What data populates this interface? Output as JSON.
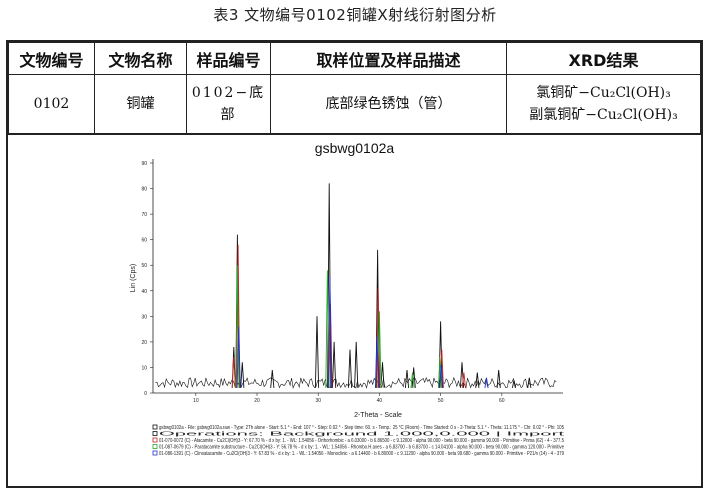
{
  "caption": "表3   文物编号0102铜罐X射线衍射图分析",
  "table": {
    "headers": [
      "文物编号",
      "文物名称",
      "样品编号",
      "取样位置及样品描述",
      "XRD结果"
    ],
    "row": {
      "id": "0102",
      "name": "铜罐",
      "sample": "0102−底部",
      "description": "底部绿色锈蚀（管）",
      "xrd_1": "氯铜矿−Cu₂Cl(OH)₃",
      "xrd_2": "副氯铜矿−Cu₂Cl(OH)₃"
    }
  },
  "chart_title": "gsbwg0102a",
  "chart_data": {
    "type": "line",
    "title": "gsbwg0102a",
    "xlabel": "2-Theta - Scale",
    "ylabel": "Lin (Cps)",
    "xlim": [
      3,
      70
    ],
    "ylim": [
      0,
      90
    ],
    "x_ticks": [
      "10",
      "20",
      "30",
      "40",
      "50",
      "60"
    ],
    "y_ticks": [
      "0",
      "10",
      "20",
      "30",
      "40",
      "50",
      "60",
      "70",
      "80",
      "90"
    ],
    "series": [
      {
        "color": "#111111",
        "peaks": [
          [
            16.2,
            18
          ],
          [
            16.8,
            62
          ],
          [
            17.6,
            12
          ],
          [
            22.5,
            9
          ],
          [
            29.8,
            30
          ],
          [
            31.8,
            82
          ],
          [
            32.6,
            20
          ],
          [
            35.2,
            17
          ],
          [
            36.2,
            20
          ],
          [
            39.7,
            56
          ],
          [
            40.5,
            12
          ],
          [
            44.5,
            9
          ],
          [
            45.6,
            10
          ],
          [
            50.0,
            28
          ],
          [
            53.5,
            12
          ],
          [
            56.0,
            8
          ],
          [
            59.5,
            9
          ],
          [
            62.0,
            5
          ],
          [
            64.5,
            6
          ]
        ]
      },
      {
        "color": "#cc2222",
        "peaks": [
          [
            16.2,
            14
          ],
          [
            16.9,
            58
          ],
          [
            32.0,
            35
          ],
          [
            39.8,
            41
          ],
          [
            50.2,
            17
          ],
          [
            53.8,
            8
          ]
        ]
      },
      {
        "color": "#22aa22",
        "peaks": [
          [
            16.8,
            50
          ],
          [
            31.5,
            48
          ],
          [
            40.0,
            32
          ],
          [
            45.4,
            8
          ],
          [
            49.9,
            14
          ]
        ]
      },
      {
        "color": "#2233cc",
        "peaks": [
          [
            17.0,
            26
          ],
          [
            31.9,
            46
          ],
          [
            39.6,
            22
          ],
          [
            50.1,
            11
          ],
          [
            57.5,
            6
          ]
        ]
      }
    ]
  },
  "legend_lines": [
    "gsbwg0102a - File: gsbwg0102a.raw - Type: 2Th alone - Start: 5.1 ° - End: 107 ° - Step: 0.02 ° - Step time: 60. s - Temp.: 25 °C (Room) - Time Started: 0 s - 2-Theta: 5.1 ° - Theta: 11.175 ° - Chi: 0.02 ° - Phi: 105",
    "Operations: Background 1.000,0.000 | Import",
    "01-070-0072 (C) - Atacamite - Cu2Cl(OH)3 - Y: 67.70 % - d x by: 1. - WL: 1.54056 - Orthorhombic - a 6.03000 - b 6.86500 - c 9.12000 - alpha 90.000 - beta 90.000 - gamma 90.000 - Primitive - Pnma (62) - 4 - 377.5",
    "01-087-0679 (C) - Paratacamite substructure - Cu2Cl(OH)3 - Y: 56.78 % - d x by: 1. - WL: 1.54056 - Rhombo.H.axes - a 6.83700 - b 6.83700 - c 14.04100 - alpha 90.000 - beta 90.000 - gamma 120.000 - Primitive",
    "01-086-1391 (C) - Clinoatacamite - Cu2Cl(OH)3 - Y: 67.83 % - d x by: 1. - WL: 1.54056 - Monoclinic - a 6.14400 - b 6.80000 - c 9.11200 - alpha 90.000 - beta 99.680 - gamma 90.000 - Primitive - P21/n (14) - 4 - 379"
  ],
  "legend_colors": [
    "#111111",
    "#111111",
    "#cc2222",
    "#22aa22",
    "#2233cc"
  ]
}
